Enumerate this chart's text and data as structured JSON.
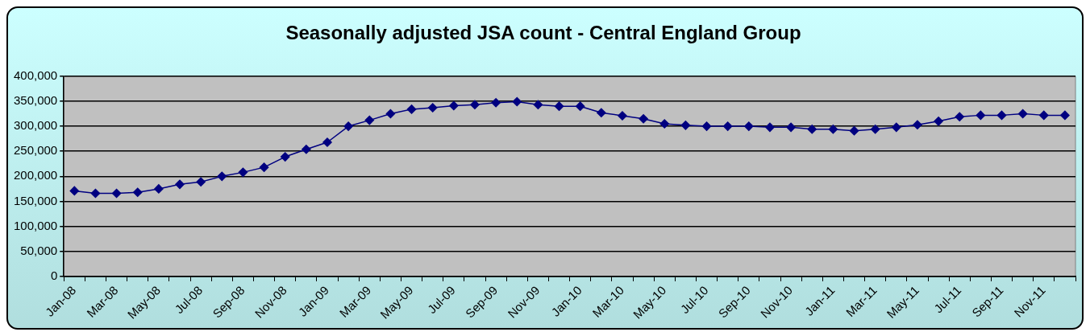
{
  "chart_data": {
    "type": "line",
    "title": "Seasonally adjusted JSA count - Central England Group",
    "categories": [
      "Jan-08",
      null,
      "Mar-08",
      null,
      "May-08",
      null,
      "Jul-08",
      null,
      "Sep-08",
      null,
      "Nov-08",
      null,
      "Jan-09",
      null,
      "Mar-09",
      null,
      "May-09",
      null,
      "Jul-09",
      null,
      "Sep-09",
      null,
      "Nov-09",
      null,
      "Jan-10",
      null,
      "Mar-10",
      null,
      "May-10",
      null,
      "Jul-10",
      null,
      "Sep-10",
      null,
      "Nov-10",
      null,
      "Jan-11",
      null,
      "Mar-11",
      null,
      "May-11",
      null,
      "Jul-11",
      null,
      "Sep-11",
      null,
      "Nov-11",
      null
    ],
    "series": [
      {
        "color": "#000080",
        "values": [
          171000,
          166000,
          166000,
          168000,
          175000,
          184000,
          189000,
          200000,
          208000,
          218000,
          239000,
          254000,
          268000,
          300000,
          312000,
          325000,
          334000,
          337000,
          341000,
          343000,
          347000,
          349000,
          343000,
          340000,
          340000,
          327000,
          321000,
          315000,
          305000,
          302000,
          300000,
          300000,
          300000,
          298000,
          298000,
          294000,
          294000,
          291000,
          294000,
          298000,
          303000,
          310000,
          319000,
          322000,
          322000,
          325000,
          322000,
          322000
        ]
      }
    ],
    "ylim": [
      0,
      400000
    ],
    "yticks": [
      0,
      {
        "value": 50000,
        "label": "50,000"
      },
      {
        "value": 100000,
        "label": "100,000"
      },
      {
        "value": 150000,
        "label": "150,000"
      },
      {
        "value": 200000,
        "label": "200,000"
      },
      {
        "value": 250000,
        "label": "250,000"
      },
      {
        "value": 300000,
        "label": "300,000"
      },
      {
        "value": 350000,
        "label": "350,000"
      },
      {
        "value": 400000,
        "label": "400,000"
      }
    ],
    "grid": "y",
    "legend": false,
    "marker": "diamond",
    "line_style": "solid"
  }
}
